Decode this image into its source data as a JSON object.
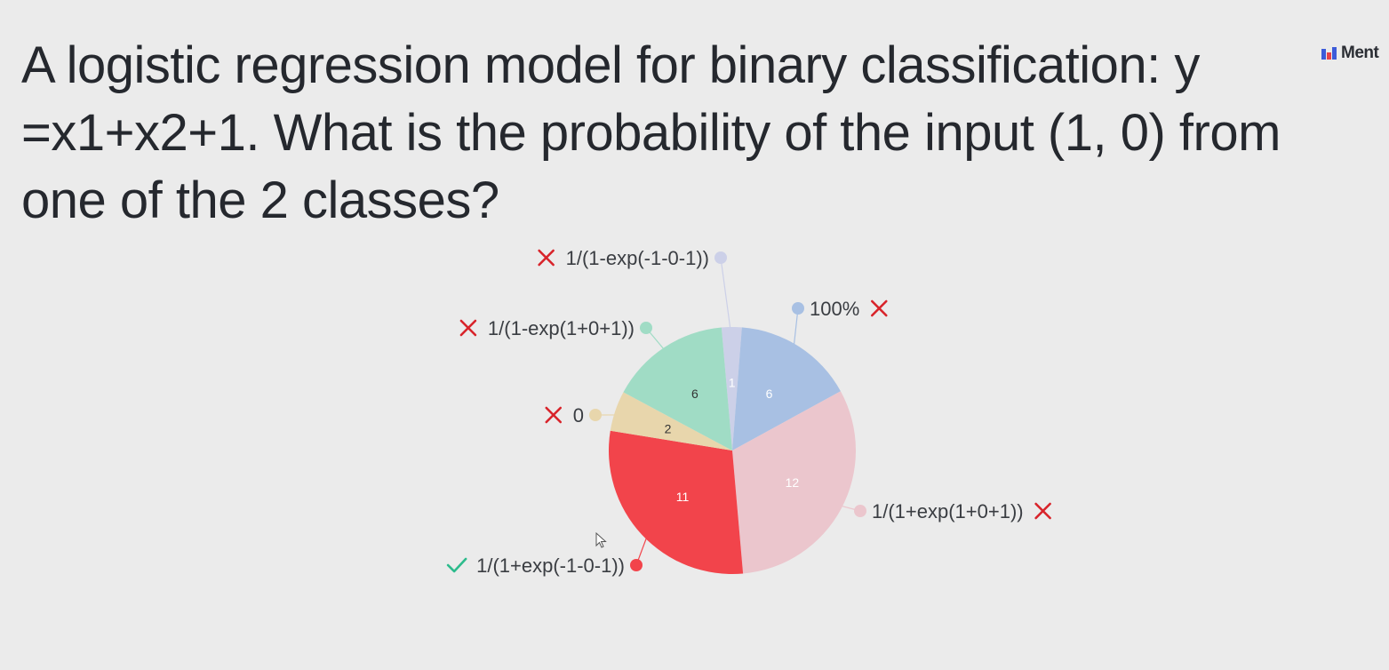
{
  "slide": {
    "question": "A logistic regression model for binary classification: y =x1+x2+1. What is the probability of the input (1, 0) from one of the 2 classes?"
  },
  "brand": {
    "name": "Ment",
    "icon": "mentimeter-logo-icon"
  },
  "chart_data": {
    "type": "pie",
    "title": "",
    "slices": [
      {
        "label": "1/(1-exp(-1-0-1))",
        "value": 1,
        "color": "#ccd0e8",
        "count_color": "#ffffff",
        "correct": false
      },
      {
        "label": "100%",
        "value": 6,
        "color": "#a8c0e3",
        "count_color": "#ffffff",
        "correct": false
      },
      {
        "label": "1/(1+exp(1+0+1))",
        "value": 12,
        "color": "#ebc6cd",
        "count_color": "#ffffff",
        "correct": false
      },
      {
        "label": "1/(1+exp(-1-0-1))",
        "value": 11,
        "color": "#f2444b",
        "count_color": "#ffffff",
        "correct": true
      },
      {
        "label": "0",
        "value": 2,
        "color": "#e8d6ac",
        "count_color": "#333333",
        "correct": false
      },
      {
        "label": "1/(1-exp(1+0+1))",
        "value": 6,
        "color": "#a0dcc5",
        "count_color": "#333333",
        "correct": false
      }
    ],
    "start_angle_deg": -5,
    "legend": "outside labels with leader lines",
    "correct_color": "#2dbb8c",
    "incorrect_color": "#d8232a"
  }
}
